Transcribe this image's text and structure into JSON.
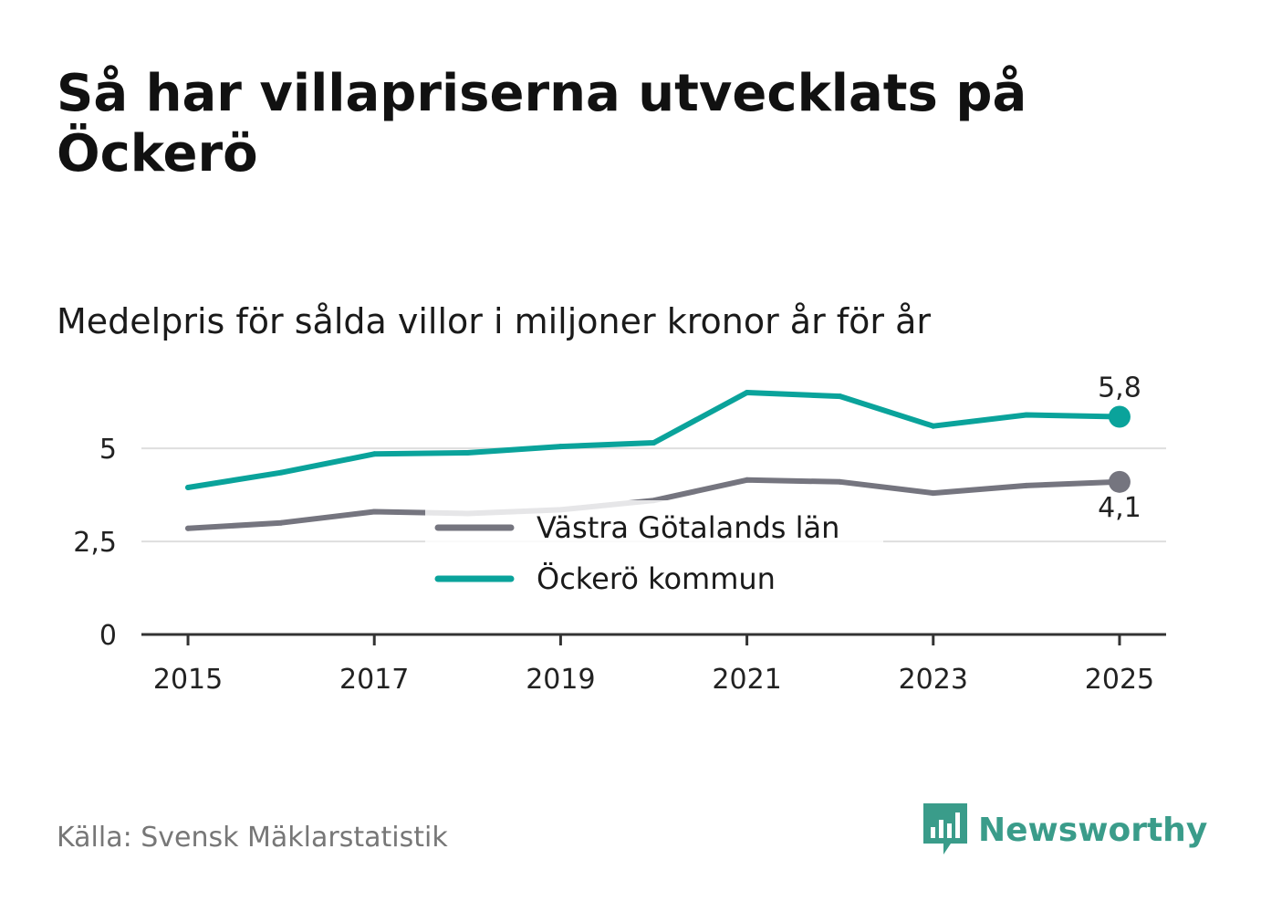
{
  "header": {
    "title": "Så har villapriserna utvecklats på Öckerö",
    "subtitle": "Medelpris för sålda villor i miljoner kronor år för år"
  },
  "chart_data": {
    "type": "line",
    "title": "Så har villapriserna utvecklats på Öckerö",
    "subtitle": "Medelpris för sålda villor i miljoner kronor år för år",
    "xlabel": "",
    "ylabel": "",
    "x": [
      2015,
      2016,
      2017,
      2018,
      2019,
      2020,
      2021,
      2022,
      2023,
      2024,
      2025
    ],
    "xticks": [
      "2015",
      "2017",
      "2019",
      "2021",
      "2023",
      "2025"
    ],
    "xticks_values": [
      2015,
      2017,
      2019,
      2021,
      2023,
      2025
    ],
    "yticks": [
      "0",
      "2,5",
      "5"
    ],
    "yticks_values": [
      0,
      2.5,
      5
    ],
    "ylim": [
      0,
      6.5
    ],
    "xlim": [
      2014.5,
      2025.5
    ],
    "grid": true,
    "series": [
      {
        "name": "Västra Götalands län",
        "color": "#75757f",
        "values": [
          2.85,
          3.0,
          3.3,
          3.25,
          3.35,
          3.6,
          4.15,
          4.1,
          3.8,
          4.0,
          4.1
        ],
        "end_label": "4,1"
      },
      {
        "name": "Öckerö kommun",
        "color": "#0aa39b",
        "values": [
          3.95,
          4.35,
          4.85,
          4.88,
          5.05,
          5.15,
          6.5,
          6.4,
          5.6,
          5.9,
          5.85
        ],
        "end_label": "5,8"
      }
    ],
    "legend_position": "center"
  },
  "footer": {
    "source": "Källa: Svensk Mäklarstatistik",
    "brand": "Newsworthy",
    "brand_color": "#3a9c8a"
  }
}
